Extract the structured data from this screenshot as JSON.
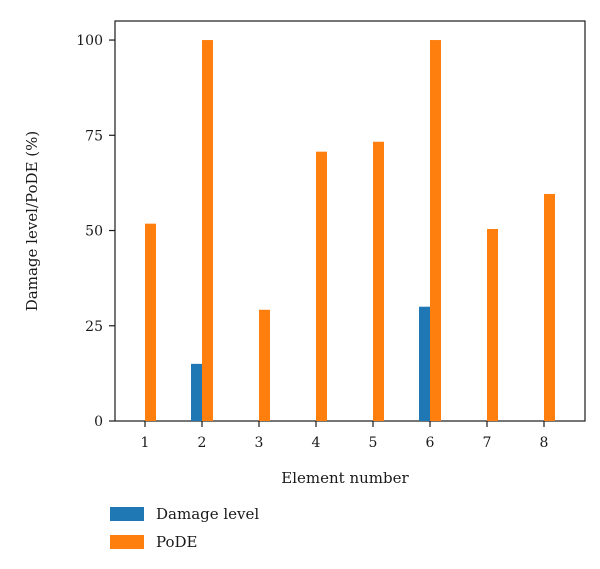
{
  "chart_data": {
    "type": "bar",
    "categories": [
      "1",
      "2",
      "3",
      "4",
      "5",
      "6",
      "7",
      "8"
    ],
    "series": [
      {
        "name": "Damage level",
        "color": "#1f77b4",
        "values": [
          0,
          15,
          0,
          0,
          0,
          30,
          0,
          0
        ]
      },
      {
        "name": "PoDE",
        "color": "#ff7f0e",
        "values": [
          51.8,
          100,
          29.2,
          70.7,
          73.3,
          100,
          50.4,
          59.6
        ]
      }
    ],
    "xlabel": "Element number",
    "ylabel": "Damage level/PoDE (%)",
    "ylim": [
      0,
      105
    ],
    "yticks": [
      0,
      25,
      50,
      75,
      100
    ],
    "grid": false,
    "legend_position": "bottom-left"
  }
}
